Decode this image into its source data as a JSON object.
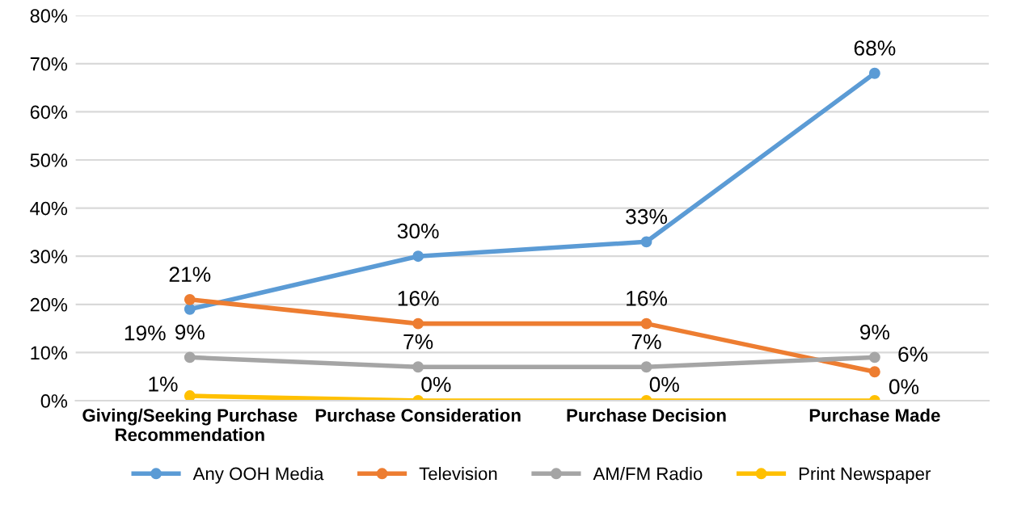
{
  "chart_data": {
    "type": "line",
    "categories": [
      "Giving/Seeking Purchase\nRecommendation",
      "Purchase Consideration",
      "Purchase Decision",
      "Purchase Made"
    ],
    "series": [
      {
        "name": "Any OOH Media",
        "color": "#5b9bd5",
        "values": [
          19,
          30,
          33,
          68
        ],
        "value_labels": [
          "19%",
          "30%",
          "33%",
          "68%"
        ]
      },
      {
        "name": "Television",
        "color": "#ed7d31",
        "values": [
          21,
          16,
          16,
          6
        ],
        "value_labels": [
          "21%",
          "16%",
          "16%",
          "6%"
        ]
      },
      {
        "name": "AM/FM Radio",
        "color": "#a5a5a5",
        "values": [
          9,
          7,
          7,
          9
        ],
        "value_labels": [
          "9%",
          "7%",
          "7%",
          "9%"
        ]
      },
      {
        "name": "Print Newspaper",
        "color": "#ffc000",
        "values": [
          1,
          0,
          0,
          0
        ],
        "value_labels": [
          "1%",
          "0%",
          "0%",
          "0%"
        ]
      }
    ],
    "ylim": [
      0,
      80
    ],
    "yticks": [
      {
        "value": 0,
        "label": "0%"
      },
      {
        "value": 10,
        "label": "10%"
      },
      {
        "value": 20,
        "label": "20%"
      },
      {
        "value": 30,
        "label": "30%"
      },
      {
        "value": 40,
        "label": "40%"
      },
      {
        "value": 50,
        "label": "50%"
      },
      {
        "value": 60,
        "label": "60%"
      },
      {
        "value": 70,
        "label": "70%"
      },
      {
        "value": 80,
        "label": "80%"
      }
    ],
    "grid": "y",
    "legend": "bottom",
    "marker": "circle",
    "line_style": "solid"
  }
}
